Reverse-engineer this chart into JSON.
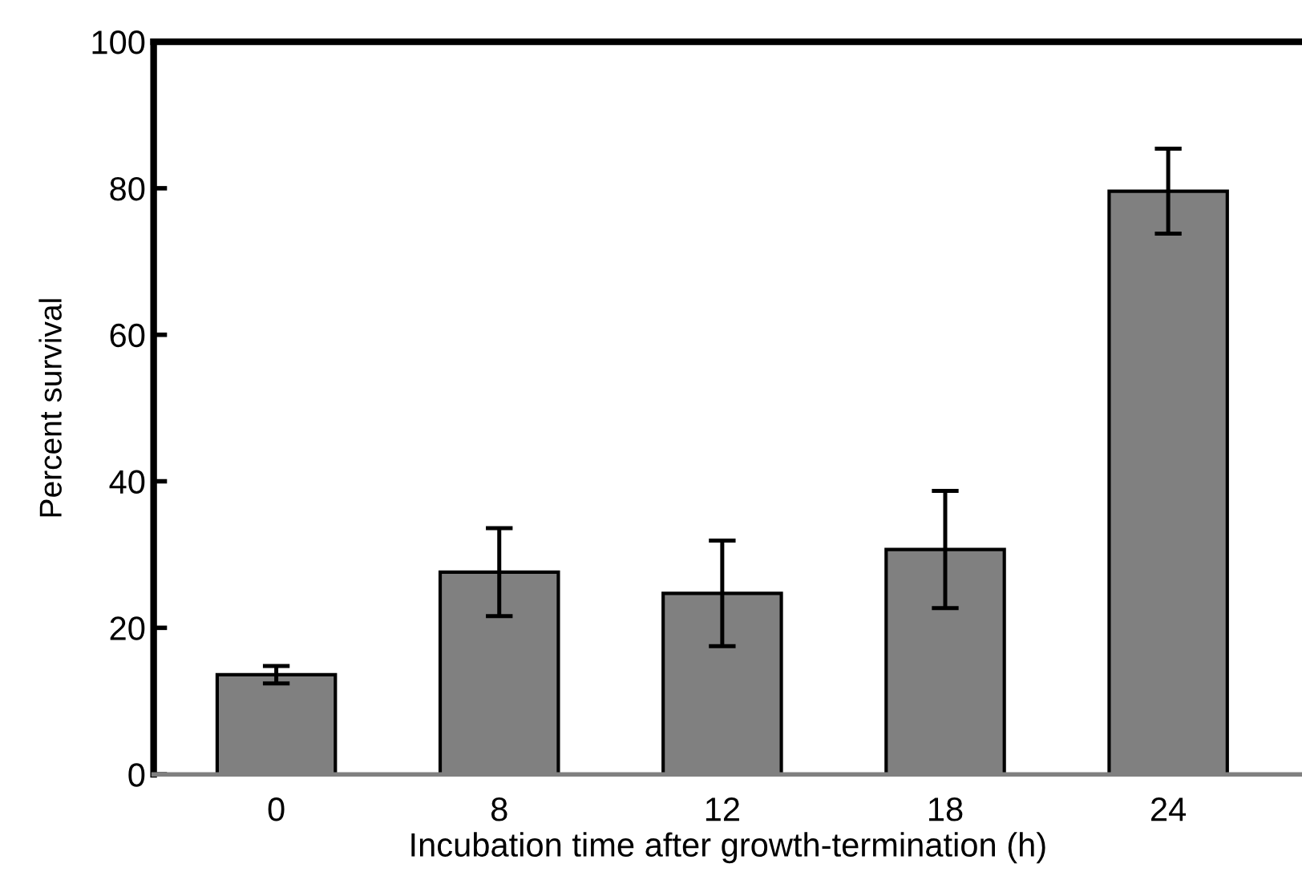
{
  "chart_data": {
    "type": "bar",
    "xlabel": "Incubation time after growth-termination (h)",
    "ylabel": "Percent survival",
    "categories": [
      "0",
      "8",
      "12",
      "18",
      "24"
    ],
    "values": [
      13.6,
      27.6,
      24.7,
      30.7,
      79.6
    ],
    "errors": [
      1.2,
      6,
      7.2,
      8,
      5.8
    ],
    "color": "#808080",
    "ylim": [
      0,
      100
    ],
    "yticks": [
      0,
      20,
      40,
      60,
      80,
      100
    ],
    "grid": false,
    "legend": false
  }
}
